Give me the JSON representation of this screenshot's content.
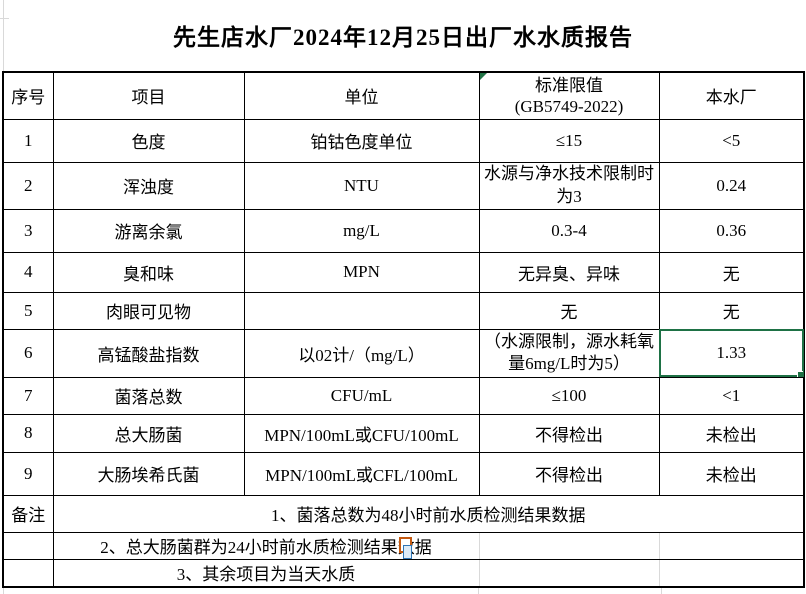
{
  "title": "先生店水厂2024年12月25日出厂水水质报告",
  "table": {
    "headers": [
      "序号",
      "项目",
      "单位",
      {
        "line1": "标准限值",
        "line2": "(GB5749-2022)"
      },
      "本水厂"
    ],
    "rows": [
      {
        "no": "1",
        "item": "色度",
        "unit": "铂钴色度单位",
        "standard": "≤15",
        "value": "<5"
      },
      {
        "no": "2",
        "item": "浑浊度",
        "unit": "NTU",
        "standard": "水源与净水技术限制时为3",
        "value": "0.24",
        "standard_wrap": true
      },
      {
        "no": "3",
        "item": "游离余氯",
        "unit": "mg/L",
        "standard": "0.3-4",
        "value": "0.36"
      },
      {
        "no": "4",
        "item": "臭和味",
        "unit": "MPN",
        "standard": "无异臭、异味",
        "value": "无"
      },
      {
        "no": "5",
        "item": "肉眼可见物",
        "unit": "",
        "standard": "无",
        "value": "无"
      },
      {
        "no": "6",
        "item": "高锰酸盐指数",
        "unit": "以02计/（mg/L）",
        "standard": "（水源限制，源水耗氧量6mg/L时为5）",
        "value": "1.33",
        "standard_wrap": true,
        "selected": true
      },
      {
        "no": "7",
        "item": "菌落总数",
        "unit": "CFU/mL",
        "standard": "≤100",
        "value": "<1"
      },
      {
        "no": "8",
        "item": "总大肠菌",
        "unit": "MPN/100mL或CFU/100mL",
        "standard": "不得检出",
        "value": "未检出"
      },
      {
        "no": "9",
        "item": "大肠埃希氏菌",
        "unit": "MPN/100mL或CFL/100mL",
        "standard": "不得检出",
        "value": "未检出"
      }
    ]
  },
  "notes": {
    "label": "备注",
    "items": [
      "1、菌落总数为48小时前水质检测结果数据",
      "2、总大肠菌群为24小时前水质检测结果数据",
      "3、其余项目为当天水质"
    ]
  },
  "colors": {
    "selection_green": "#1E7145",
    "error_indicator_green": "#217346",
    "gridline_gray": "#d9d9d9"
  },
  "icons": {
    "error_indicator": "error-indicator-triangle",
    "paste_options": "paste-options-icon",
    "fill_handle": "fill-handle"
  }
}
